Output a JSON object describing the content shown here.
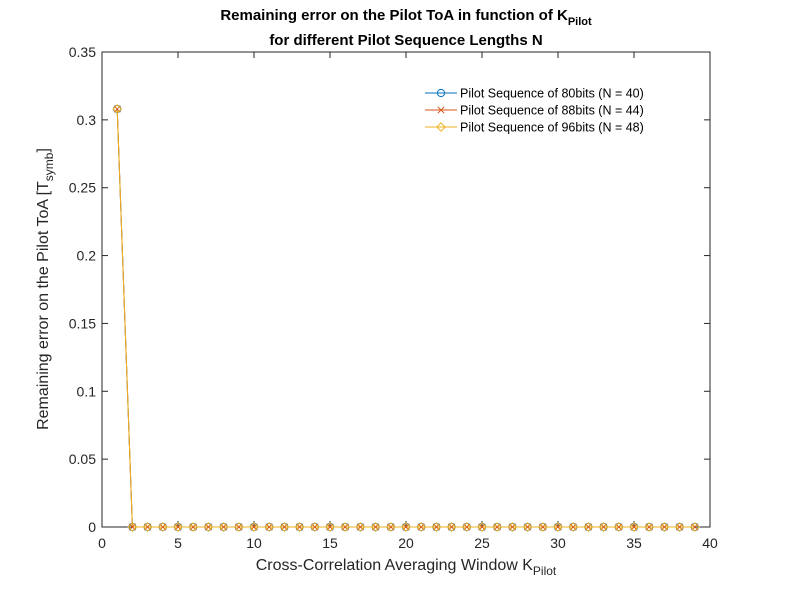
{
  "chart_data": {
    "type": "line",
    "title": {
      "line1": "Remaining error on the Pilot ToA in function of K",
      "line1_sub": "Pilot",
      "line2": "for different Pilot Sequence Lengths N"
    },
    "xlabel": {
      "text": "Cross-Correlation Averaging Window K",
      "sub": "Pilot"
    },
    "ylabel": {
      "text": "Remaining error on the Pilot ToA [T",
      "sub": "symb",
      "suffix": "]"
    },
    "xlim": [
      0,
      40
    ],
    "ylim": [
      0,
      0.35
    ],
    "xticks": [
      0,
      5,
      10,
      15,
      20,
      25,
      30,
      35,
      40
    ],
    "yticks": [
      0,
      0.05,
      0.1,
      0.15,
      0.2,
      0.25,
      0.3,
      0.35
    ],
    "xtick_labels": [
      "0",
      "5",
      "10",
      "15",
      "20",
      "25",
      "30",
      "35",
      "40"
    ],
    "ytick_labels": [
      "0",
      "0.05",
      "0.1",
      "0.15",
      "0.2",
      "0.25",
      "0.3",
      "0.35"
    ],
    "grid": false,
    "legend_position": "top-right",
    "x": [
      1,
      2,
      3,
      4,
      5,
      6,
      7,
      8,
      9,
      10,
      11,
      12,
      13,
      14,
      15,
      16,
      17,
      18,
      19,
      20,
      21,
      22,
      23,
      24,
      25,
      26,
      27,
      28,
      29,
      30,
      31,
      32,
      33,
      34,
      35,
      36,
      37,
      38,
      39
    ],
    "series": [
      {
        "name": "Pilot Sequence of 80bits (N = 40)",
        "color": "#0072BD",
        "marker": "circle",
        "values": [
          0.308,
          0,
          0,
          0,
          0,
          0,
          0,
          0,
          0,
          0,
          0,
          0,
          0,
          0,
          0,
          0,
          0,
          0,
          0,
          0,
          0,
          0,
          0,
          0,
          0,
          0,
          0,
          0,
          0,
          0,
          0,
          0,
          0,
          0,
          0,
          0,
          0,
          0,
          0
        ]
      },
      {
        "name": "Pilot Sequence of 88bits (N = 44)",
        "color": "#D95319",
        "marker": "x",
        "values": [
          0.308,
          0,
          0,
          0,
          0,
          0,
          0,
          0,
          0,
          0,
          0,
          0,
          0,
          0,
          0,
          0,
          0,
          0,
          0,
          0,
          0,
          0,
          0,
          0,
          0,
          0,
          0,
          0,
          0,
          0,
          0,
          0,
          0,
          0,
          0,
          0,
          0,
          0,
          0
        ]
      },
      {
        "name": "Pilot Sequence of 96bits (N = 48)",
        "color": "#EDB120",
        "marker": "diamond",
        "values": [
          0.308,
          0,
          0,
          0,
          0,
          0,
          0,
          0,
          0,
          0,
          0,
          0,
          0,
          0,
          0,
          0,
          0,
          0,
          0,
          0,
          0,
          0,
          0,
          0,
          0,
          0,
          0,
          0,
          0,
          0,
          0,
          0,
          0,
          0,
          0,
          0,
          0,
          0,
          0
        ]
      }
    ]
  }
}
